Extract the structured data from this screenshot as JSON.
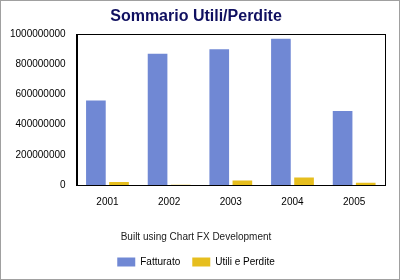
{
  "chart_data": {
    "type": "bar",
    "title": "Sommario Utili/Perdite",
    "annotation": "Built using Chart FX Development",
    "categories": [
      "2001",
      "2002",
      "2003",
      "2004",
      "2005"
    ],
    "series": [
      {
        "name": "Fatturato",
        "color": "#7088d4",
        "values": [
          560000000,
          870000000,
          900000000,
          970000000,
          490000000
        ]
      },
      {
        "name": "Utili e Perdite",
        "color": "#e6be1e",
        "values": [
          20000000,
          2000000,
          30000000,
          50000000,
          15000000
        ]
      }
    ],
    "ylim": [
      0,
      1000000000
    ],
    "yticks": [
      0,
      200000000,
      400000000,
      600000000,
      800000000,
      1000000000
    ],
    "grid": false,
    "legend": "bottom"
  }
}
